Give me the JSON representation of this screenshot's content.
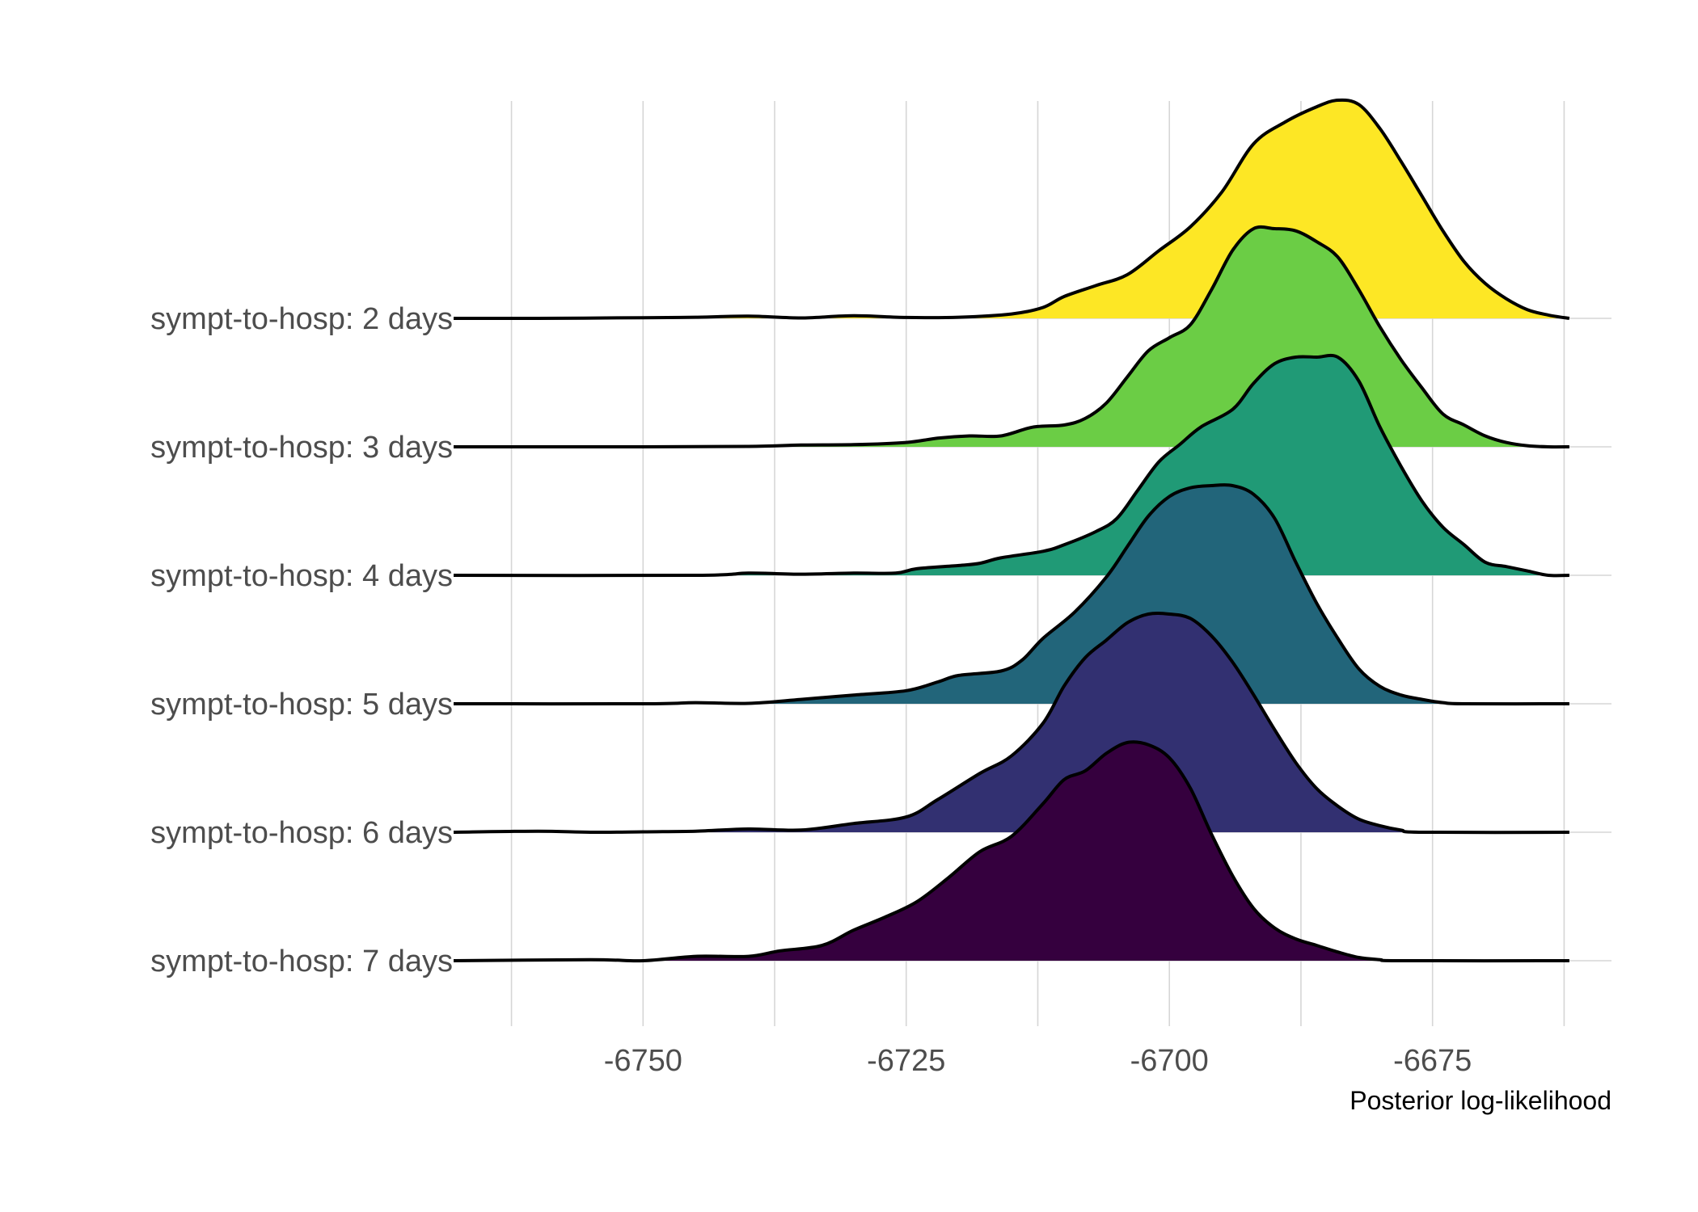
{
  "chart_data": {
    "type": "ridgeline",
    "title": "",
    "xlabel": "Posterior log-likelihood",
    "ylabel": "",
    "xlim": [
      -6766,
      -6658
    ],
    "x_ticks": [
      -6750,
      -6725,
      -6700,
      -6675
    ],
    "x_tick_labels": [
      "-6750",
      "-6725",
      "-6700",
      "-6675"
    ],
    "x_minor_gridlines": [
      -6762.5,
      -6737.5,
      -6712.5,
      -6687.5,
      -6662.5
    ],
    "x_range": [
      -6768,
      -6662
    ],
    "grid": true,
    "legend": "none",
    "categories": [
      "sympt-to-hosp: 2 days",
      "sympt-to-hosp: 3 days",
      "sympt-to-hosp: 4 days",
      "sympt-to-hosp: 5 days",
      "sympt-to-hosp: 6 days",
      "sympt-to-hosp: 7 days"
    ],
    "series": [
      {
        "category": "sympt-to-hosp: 2 days",
        "color": "#FDE725",
        "density": [
          [
            -6768,
            0
          ],
          [
            -6760,
            0
          ],
          [
            -6750,
            0.003
          ],
          [
            -6745,
            0.005
          ],
          [
            -6740,
            0.01
          ],
          [
            -6735,
            0.002
          ],
          [
            -6730,
            0.012
          ],
          [
            -6725,
            0.004
          ],
          [
            -6720,
            0.005
          ],
          [
            -6715,
            0.02
          ],
          [
            -6712,
            0.05
          ],
          [
            -6710,
            0.1
          ],
          [
            -6707,
            0.15
          ],
          [
            -6704,
            0.2
          ],
          [
            -6701,
            0.31
          ],
          [
            -6698,
            0.42
          ],
          [
            -6695,
            0.58
          ],
          [
            -6692,
            0.8
          ],
          [
            -6689,
            0.9
          ],
          [
            -6686,
            0.97
          ],
          [
            -6684,
            1.0
          ],
          [
            -6682,
            0.98
          ],
          [
            -6680,
            0.87
          ],
          [
            -6678,
            0.72
          ],
          [
            -6676,
            0.56
          ],
          [
            -6674,
            0.4
          ],
          [
            -6672,
            0.26
          ],
          [
            -6670,
            0.16
          ],
          [
            -6668,
            0.09
          ],
          [
            -6666,
            0.04
          ],
          [
            -6664,
            0.015
          ],
          [
            -6662,
            0
          ]
        ]
      },
      {
        "category": "sympt-to-hosp: 3 days",
        "color": "#6BCD45",
        "density": [
          [
            -6768,
            0
          ],
          [
            -6750,
            0
          ],
          [
            -6740,
            0.002
          ],
          [
            -6735,
            0.008
          ],
          [
            -6730,
            0.01
          ],
          [
            -6725,
            0.02
          ],
          [
            -6722,
            0.04
          ],
          [
            -6719,
            0.05
          ],
          [
            -6716,
            0.05
          ],
          [
            -6713,
            0.09
          ],
          [
            -6710,
            0.1
          ],
          [
            -6708,
            0.13
          ],
          [
            -6706,
            0.2
          ],
          [
            -6704,
            0.32
          ],
          [
            -6702,
            0.44
          ],
          [
            -6700,
            0.5
          ],
          [
            -6698,
            0.56
          ],
          [
            -6696,
            0.72
          ],
          [
            -6694,
            0.9
          ],
          [
            -6692,
            1.0
          ],
          [
            -6690,
            1.0
          ],
          [
            -6688,
            0.99
          ],
          [
            -6686,
            0.94
          ],
          [
            -6684,
            0.87
          ],
          [
            -6682,
            0.72
          ],
          [
            -6680,
            0.55
          ],
          [
            -6678,
            0.4
          ],
          [
            -6676,
            0.27
          ],
          [
            -6674,
            0.15
          ],
          [
            -6672,
            0.1
          ],
          [
            -6670,
            0.05
          ],
          [
            -6668,
            0.02
          ],
          [
            -6666,
            0.005
          ],
          [
            -6664,
            0
          ],
          [
            -6662,
            0
          ]
        ]
      },
      {
        "category": "sympt-to-hosp: 4 days",
        "color": "#209A76",
        "density": [
          [
            -6768,
            0
          ],
          [
            -6745,
            0
          ],
          [
            -6740,
            0.01
          ],
          [
            -6735,
            0.005
          ],
          [
            -6730,
            0.01
          ],
          [
            -6726,
            0.01
          ],
          [
            -6724,
            0.03
          ],
          [
            -6720,
            0.045
          ],
          [
            -6718,
            0.055
          ],
          [
            -6716,
            0.08
          ],
          [
            -6712,
            0.11
          ],
          [
            -6710,
            0.14
          ],
          [
            -6707,
            0.2
          ],
          [
            -6705,
            0.26
          ],
          [
            -6703,
            0.39
          ],
          [
            -6701,
            0.52
          ],
          [
            -6699,
            0.6
          ],
          [
            -6697,
            0.68
          ],
          [
            -6694,
            0.76
          ],
          [
            -6692,
            0.88
          ],
          [
            -6690,
            0.97
          ],
          [
            -6688,
            1.0
          ],
          [
            -6686,
            1.0
          ],
          [
            -6684,
            1.0
          ],
          [
            -6682,
            0.89
          ],
          [
            -6680,
            0.68
          ],
          [
            -6678,
            0.5
          ],
          [
            -6676,
            0.34
          ],
          [
            -6674,
            0.22
          ],
          [
            -6672,
            0.14
          ],
          [
            -6670,
            0.06
          ],
          [
            -6668,
            0.04
          ],
          [
            -6666,
            0.02
          ],
          [
            -6664,
            0
          ],
          [
            -6662,
            0
          ]
        ]
      },
      {
        "category": "sympt-to-hosp: 5 days",
        "color": "#22657A",
        "density": [
          [
            -6768,
            0
          ],
          [
            -6750,
            0
          ],
          [
            -6745,
            0.005
          ],
          [
            -6740,
            0.002
          ],
          [
            -6735,
            0.02
          ],
          [
            -6730,
            0.04
          ],
          [
            -6725,
            0.06
          ],
          [
            -6722,
            0.1
          ],
          [
            -6720,
            0.13
          ],
          [
            -6716,
            0.15
          ],
          [
            -6714,
            0.2
          ],
          [
            -6712,
            0.3
          ],
          [
            -6709,
            0.42
          ],
          [
            -6706,
            0.58
          ],
          [
            -6704,
            0.72
          ],
          [
            -6702,
            0.86
          ],
          [
            -6700,
            0.95
          ],
          [
            -6698,
            0.99
          ],
          [
            -6696,
            1.0
          ],
          [
            -6694,
            1.0
          ],
          [
            -6692,
            0.96
          ],
          [
            -6690,
            0.85
          ],
          [
            -6688,
            0.65
          ],
          [
            -6686,
            0.46
          ],
          [
            -6684,
            0.3
          ],
          [
            -6682,
            0.16
          ],
          [
            -6680,
            0.08
          ],
          [
            -6678,
            0.04
          ],
          [
            -6676,
            0.02
          ],
          [
            -6674,
            0.005
          ],
          [
            -6672,
            0
          ],
          [
            -6662,
            0
          ]
        ]
      },
      {
        "category": "sympt-to-hosp: 6 days",
        "color": "#323071",
        "density": [
          [
            -6768,
            0
          ],
          [
            -6760,
            0.005
          ],
          [
            -6755,
            0
          ],
          [
            -6750,
            0.002
          ],
          [
            -6745,
            0.005
          ],
          [
            -6740,
            0.015
          ],
          [
            -6735,
            0.01
          ],
          [
            -6730,
            0.04
          ],
          [
            -6725,
            0.07
          ],
          [
            -6722,
            0.15
          ],
          [
            -6718,
            0.27
          ],
          [
            -6715,
            0.35
          ],
          [
            -6712,
            0.5
          ],
          [
            -6710,
            0.67
          ],
          [
            -6708,
            0.8
          ],
          [
            -6706,
            0.88
          ],
          [
            -6704,
            0.96
          ],
          [
            -6702,
            1.0
          ],
          [
            -6700,
            1.0
          ],
          [
            -6698,
            0.98
          ],
          [
            -6696,
            0.9
          ],
          [
            -6694,
            0.78
          ],
          [
            -6692,
            0.63
          ],
          [
            -6690,
            0.47
          ],
          [
            -6688,
            0.32
          ],
          [
            -6686,
            0.2
          ],
          [
            -6684,
            0.12
          ],
          [
            -6682,
            0.06
          ],
          [
            -6680,
            0.03
          ],
          [
            -6678,
            0.01
          ],
          [
            -6676,
            0
          ],
          [
            -6662,
            0
          ]
        ]
      },
      {
        "category": "sympt-to-hosp: 7 days",
        "color": "#35003E",
        "density": [
          [
            -6768,
            0
          ],
          [
            -6755,
            0.005
          ],
          [
            -6750,
            0
          ],
          [
            -6745,
            0.02
          ],
          [
            -6740,
            0.02
          ],
          [
            -6737,
            0.045
          ],
          [
            -6733,
            0.07
          ],
          [
            -6730,
            0.14
          ],
          [
            -6727,
            0.2
          ],
          [
            -6724,
            0.27
          ],
          [
            -6721,
            0.38
          ],
          [
            -6718,
            0.5
          ],
          [
            -6715,
            0.57
          ],
          [
            -6712,
            0.72
          ],
          [
            -6710,
            0.83
          ],
          [
            -6708,
            0.87
          ],
          [
            -6706,
            0.95
          ],
          [
            -6704,
            1.0
          ],
          [
            -6702,
            0.99
          ],
          [
            -6700,
            0.93
          ],
          [
            -6698,
            0.79
          ],
          [
            -6696,
            0.58
          ],
          [
            -6694,
            0.39
          ],
          [
            -6692,
            0.24
          ],
          [
            -6690,
            0.15
          ],
          [
            -6688,
            0.1
          ],
          [
            -6686,
            0.07
          ],
          [
            -6684,
            0.04
          ],
          [
            -6682,
            0.015
          ],
          [
            -6680,
            0.005
          ],
          [
            -6678,
            0
          ],
          [
            -6662,
            0
          ]
        ]
      }
    ]
  }
}
